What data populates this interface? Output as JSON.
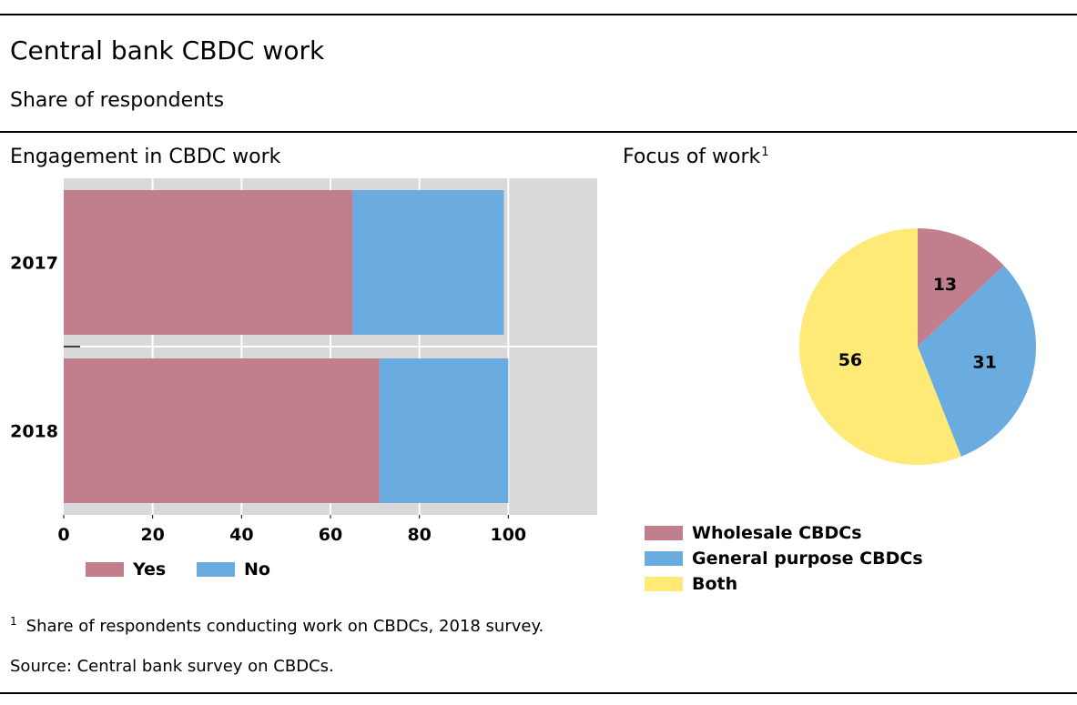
{
  "title": "Central bank CBDC work",
  "subtitle": "Share of respondents",
  "colors": {
    "yes": "#c17f8d",
    "no": "#6aace0",
    "wholesale": "#c17f8d",
    "general": "#6aace0",
    "both": "#ffea77",
    "plot_bg": "#d9d9d9"
  },
  "chart_data": [
    {
      "type": "bar",
      "orientation": "horizontal",
      "stacked": true,
      "title": "Engagement in CBDC work",
      "categories": [
        "2017",
        "2018"
      ],
      "series": [
        {
          "name": "Yes",
          "values": [
            65,
            71
          ]
        },
        {
          "name": "No",
          "values": [
            34,
            29
          ]
        }
      ],
      "xlim": [
        0,
        120
      ],
      "xticks": [
        "0",
        "20",
        "40",
        "60",
        "80",
        "100"
      ],
      "xtick_values": [
        0,
        20,
        40,
        60,
        80,
        100
      ],
      "grid": true,
      "legend": "bottom"
    },
    {
      "type": "pie",
      "title": "Focus of work",
      "title_footnote": "1",
      "slices": [
        {
          "name": "Wholesale CBDCs",
          "value": 13,
          "label": "13"
        },
        {
          "name": "General purpose CBDCs",
          "value": 31,
          "label": "31"
        },
        {
          "name": "Both",
          "value": 56,
          "label": "56"
        }
      ],
      "legend": "bottom"
    }
  ],
  "footnote": {
    "marker": "1",
    "text": "Share of respondents conducting work on CBDCs, 2018 survey."
  },
  "source": "Source: Central bank survey on CBDCs."
}
